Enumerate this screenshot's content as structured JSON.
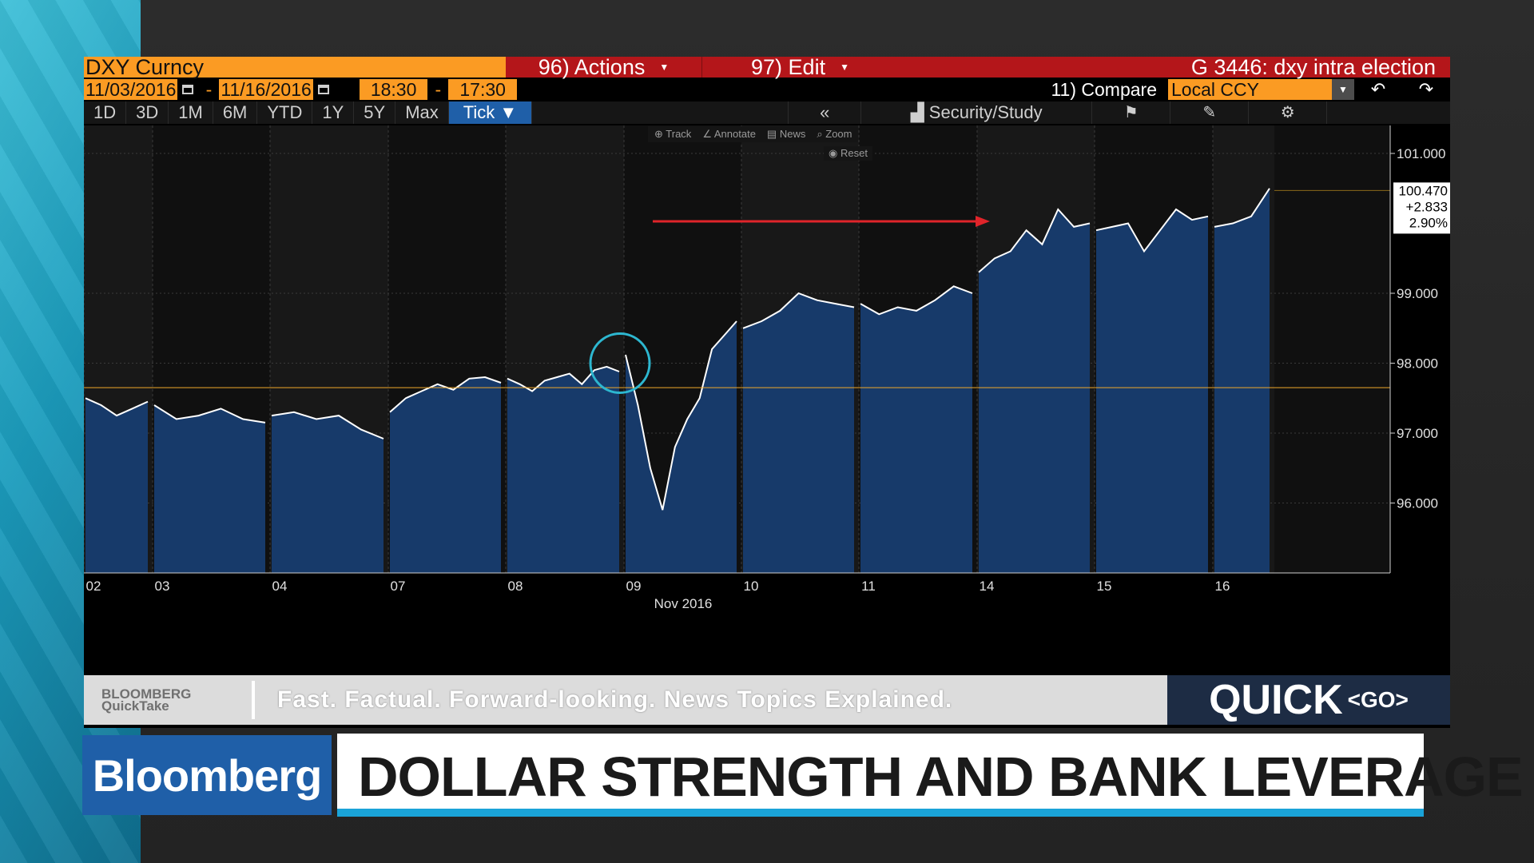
{
  "header": {
    "ticker": "DXY Curncy",
    "actions": "96) Actions",
    "edit": "97) Edit",
    "graph_title": "G 3446: dxy intra election",
    "start_date": "11/03/2016",
    "end_date": "11/16/2016",
    "start_time": "18:30",
    "end_time": "17:30",
    "compare": "11) Compare",
    "currency": "Local CCY"
  },
  "periods": [
    "1D",
    "3D",
    "1M",
    "6M",
    "YTD",
    "1Y",
    "5Y",
    "Max"
  ],
  "period_selected": "Tick",
  "toolbar": {
    "back": "«",
    "security_study": "Security/Study",
    "track": "Track",
    "annotate": "Annotate",
    "news": "News",
    "zoom": "Zoom",
    "reset": "Reset"
  },
  "last_value_box": {
    "price": "100.470",
    "change": "+2.833",
    "pct": "2.90%"
  },
  "band": {
    "brand_top": "BLOOMBERG",
    "brand_bottom": "QuickTake",
    "tagline": "Fast. Factual. Forward-looking. News Topics Explained.",
    "quick": "QUICK",
    "go": "<GO>"
  },
  "lower_third": {
    "logo": "Bloomberg",
    "headline": "DOLLAR STRENGTH AND BANK LEVERAGE"
  },
  "colors": {
    "area": "#173a6a",
    "line": "#ffffff",
    "ref_line": "#f0a92a",
    "arrow": "#e0242a",
    "circle": "#2db7d0"
  },
  "chart_data": {
    "type": "area",
    "ylim": [
      95.0,
      101.4
    ],
    "yticks": [
      "101.000",
      "99.000",
      "98.000",
      "97.000",
      "96.000"
    ],
    "ytick_values": [
      101,
      99,
      98,
      97,
      96
    ],
    "xlabel": "Nov 2016",
    "reference_level": 97.65,
    "sessions": [
      {
        "label": "02",
        "values": [
          97.5,
          97.4,
          97.25,
          97.35,
          97.45
        ]
      },
      {
        "label": "03",
        "values": [
          97.4,
          97.2,
          97.25,
          97.35,
          97.2,
          97.15
        ]
      },
      {
        "label": "04",
        "values": [
          97.25,
          97.3,
          97.2,
          97.25,
          97.05,
          96.92
        ]
      },
      {
        "label": "07",
        "values": [
          97.3,
          97.5,
          97.6,
          97.7,
          97.62,
          97.78,
          97.8,
          97.72
        ]
      },
      {
        "label": "08",
        "values": [
          97.78,
          97.7,
          97.6,
          97.75,
          97.8,
          97.85,
          97.7,
          97.9,
          97.95,
          97.88
        ]
      },
      {
        "label": "09",
        "values": [
          98.12,
          97.4,
          96.5,
          95.9,
          96.8,
          97.2,
          97.5,
          98.2,
          98.4,
          98.6
        ]
      },
      {
        "label": "10",
        "values": [
          98.5,
          98.6,
          98.75,
          99.0,
          98.9,
          98.85,
          98.8
        ]
      },
      {
        "label": "11",
        "values": [
          98.85,
          98.7,
          98.8,
          98.75,
          98.9,
          99.1,
          99.0
        ]
      },
      {
        "label": "14",
        "values": [
          99.3,
          99.5,
          99.6,
          99.9,
          99.7,
          100.2,
          99.95,
          100.0
        ]
      },
      {
        "label": "15",
        "values": [
          99.9,
          99.95,
          100.0,
          99.6,
          99.9,
          100.2,
          100.05,
          100.1
        ]
      },
      {
        "label": "16",
        "values": [
          99.95,
          100.0,
          100.1,
          100.5
        ]
      }
    ],
    "last": 100.47
  }
}
